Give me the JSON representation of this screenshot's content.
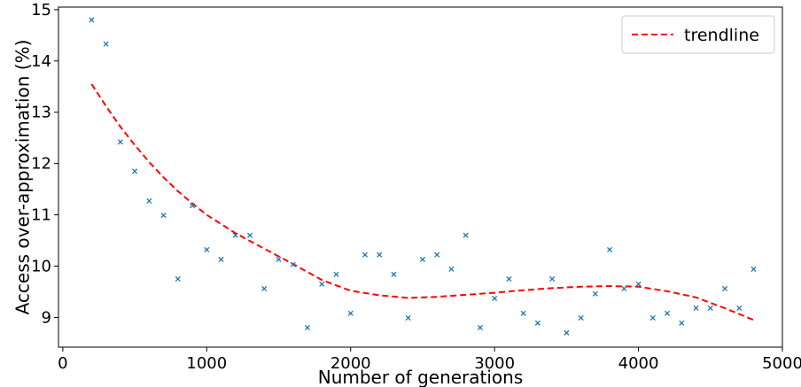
{
  "chart_data": {
    "type": "scatter",
    "title": "",
    "xlabel": "Number of generations",
    "ylabel": "Access over-approximation (%)",
    "xlim": [
      -30,
      5000
    ],
    "ylim": [
      8.42,
      15.05
    ],
    "xticks": [
      0,
      1000,
      2000,
      3000,
      4000,
      5000
    ],
    "xtick_labels": [
      "0",
      "1000",
      "2000",
      "3000",
      "4000",
      "5000"
    ],
    "yticks": [
      9,
      10,
      11,
      12,
      13,
      14,
      15
    ],
    "ytick_labels": [
      "9",
      "10",
      "11",
      "12",
      13,
      "14",
      "15"
    ],
    "grid": false,
    "legend_position": "top-right",
    "series": [
      {
        "kind": "scatter",
        "marker": "x",
        "color": "#1f77b4",
        "x": [
          200,
          300,
          400,
          500,
          600,
          700,
          800,
          900,
          1000,
          1100,
          1200,
          1300,
          1400,
          1500,
          1600,
          1700,
          1800,
          1900,
          2000,
          2100,
          2200,
          2300,
          2400,
          2500,
          2600,
          2700,
          2800,
          2900,
          3000,
          3100,
          3200,
          3300,
          3400,
          3500,
          3600,
          3700,
          3800,
          3900,
          4000,
          4100,
          4200,
          4300,
          4400,
          4500,
          4600,
          4700,
          4800
        ],
        "y": [
          14.8,
          14.33,
          12.42,
          11.85,
          11.27,
          10.99,
          9.75,
          11.18,
          10.32,
          10.13,
          10.6,
          10.6,
          9.56,
          10.13,
          10.03,
          8.8,
          9.65,
          9.84,
          9.08,
          10.22,
          10.22,
          9.84,
          8.99,
          10.13,
          10.22,
          9.94,
          10.6,
          8.8,
          9.37,
          9.75,
          9.08,
          8.89,
          9.75,
          8.7,
          8.99,
          9.46,
          10.32,
          9.56,
          9.65,
          8.99,
          9.08,
          8.89,
          9.18,
          9.18,
          9.56,
          9.18,
          9.94
        ]
      },
      {
        "kind": "line",
        "name": "trendline",
        "style": "dashed",
        "color": "#ff0000",
        "x": [
          200,
          300,
          400,
          500,
          600,
          700,
          800,
          900,
          1000,
          1200,
          1400,
          1600,
          1800,
          2000,
          2200,
          2400,
          2600,
          2800,
          3000,
          3200,
          3400,
          3600,
          3800,
          4000,
          4200,
          4400,
          4600,
          4800
        ],
        "y": [
          13.55,
          13.12,
          12.72,
          12.36,
          12.03,
          11.73,
          11.46,
          11.22,
          11.0,
          10.64,
          10.34,
          10.04,
          9.73,
          9.52,
          9.43,
          9.38,
          9.4,
          9.44,
          9.48,
          9.53,
          9.57,
          9.6,
          9.61,
          9.6,
          9.51,
          9.39,
          9.18,
          8.95
        ]
      }
    ]
  }
}
